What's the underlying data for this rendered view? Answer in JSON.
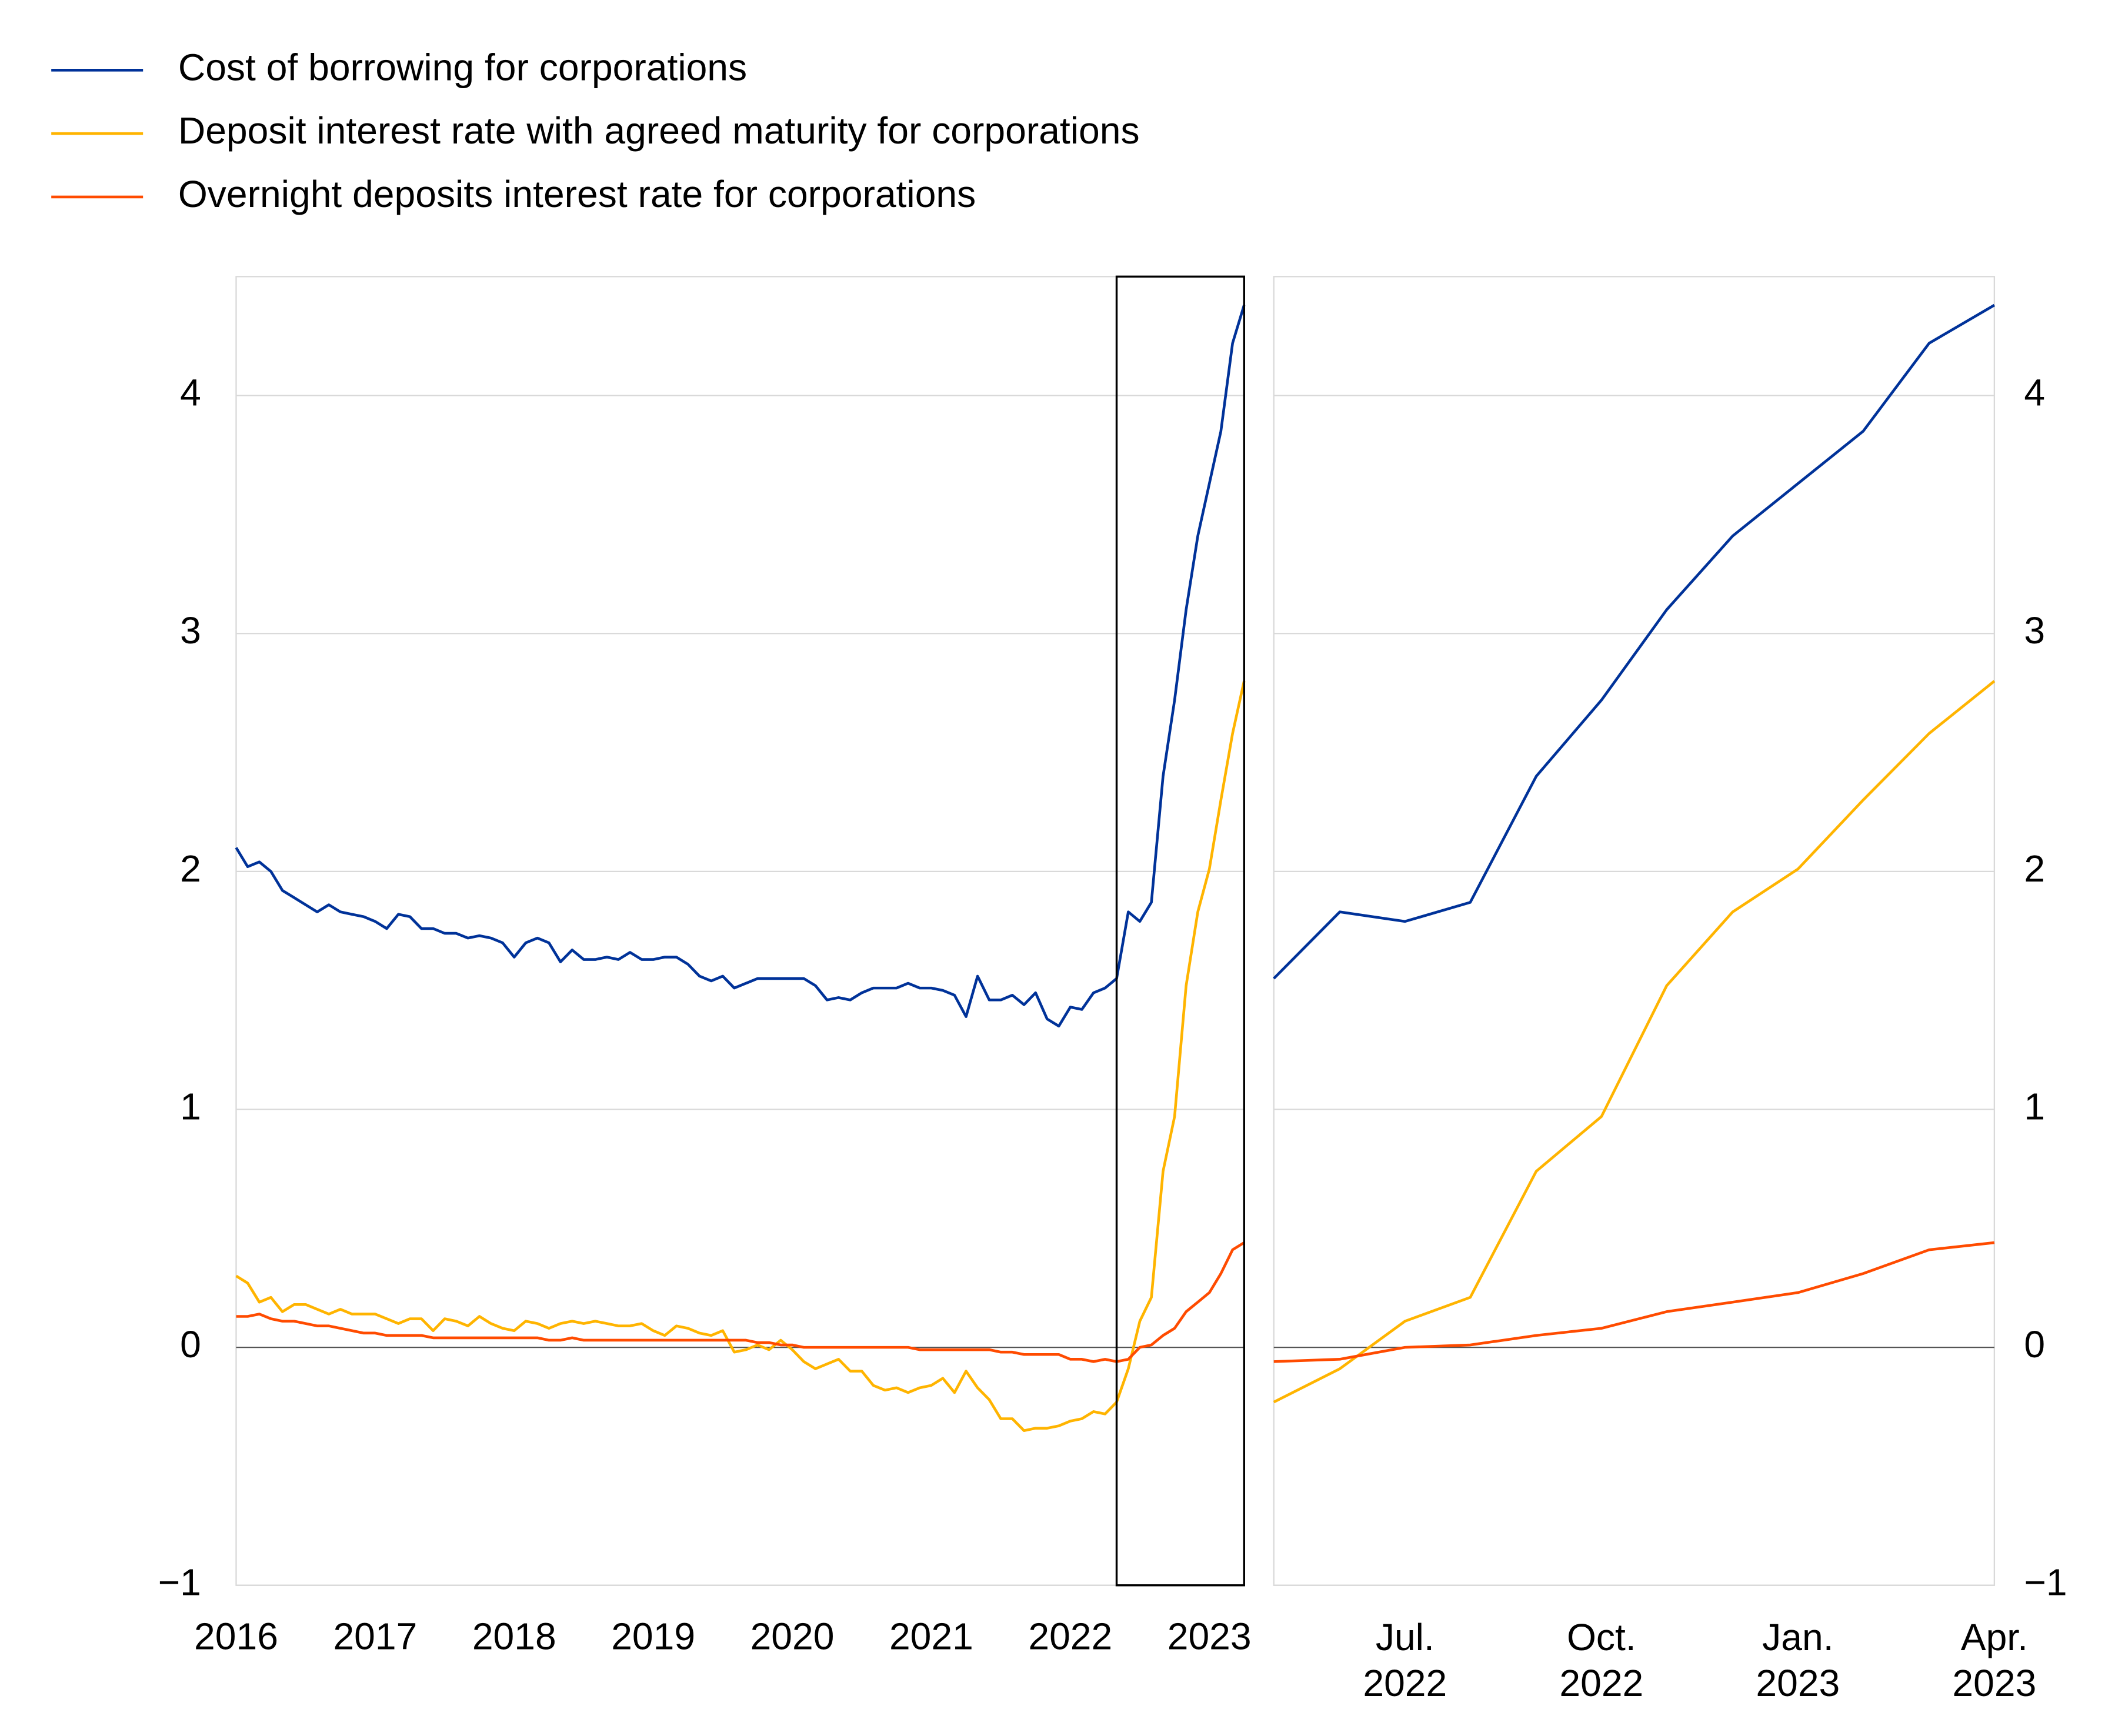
{
  "chart_data": [
    {
      "type": "line",
      "x": [
        2016,
        2016.083,
        2016.167,
        2016.25,
        2016.333,
        2016.417,
        2016.5,
        2016.583,
        2016.667,
        2016.75,
        2016.833,
        2016.917,
        2017,
        2017.083,
        2017.167,
        2017.25,
        2017.333,
        2017.417,
        2017.5,
        2017.583,
        2017.667,
        2017.75,
        2017.833,
        2017.917,
        2018,
        2018.083,
        2018.167,
        2018.25,
        2018.333,
        2018.417,
        2018.5,
        2018.583,
        2018.667,
        2018.75,
        2018.833,
        2018.917,
        2019,
        2019.083,
        2019.167,
        2019.25,
        2019.333,
        2019.417,
        2019.5,
        2019.583,
        2019.667,
        2019.75,
        2019.833,
        2019.917,
        2020,
        2020.083,
        2020.167,
        2020.25,
        2020.333,
        2020.417,
        2020.5,
        2020.583,
        2020.667,
        2020.75,
        2020.833,
        2020.917,
        2021,
        2021.083,
        2021.167,
        2021.25,
        2021.333,
        2021.417,
        2021.5,
        2021.583,
        2021.667,
        2021.75,
        2021.833,
        2021.917,
        2022,
        2022.083,
        2022.167,
        2022.25,
        2022.333,
        2022.417,
        2022.5,
        2022.583,
        2022.667,
        2022.75,
        2022.833,
        2022.917,
        2023,
        2023.083,
        2023.167,
        2023.25
      ],
      "series": [
        {
          "name": "Cost of borrowing for corporations",
          "color": "#003299",
          "values": [
            2.1,
            2.02,
            2.04,
            2.0,
            1.92,
            1.89,
            1.86,
            1.83,
            1.86,
            1.83,
            1.82,
            1.81,
            1.79,
            1.76,
            1.82,
            1.81,
            1.76,
            1.76,
            1.74,
            1.74,
            1.72,
            1.73,
            1.72,
            1.7,
            1.64,
            1.7,
            1.72,
            1.7,
            1.62,
            1.67,
            1.63,
            1.63,
            1.64,
            1.63,
            1.66,
            1.63,
            1.63,
            1.64,
            1.64,
            1.61,
            1.56,
            1.54,
            1.56,
            1.51,
            1.53,
            1.55,
            1.55,
            1.55,
            1.55,
            1.55,
            1.52,
            1.46,
            1.47,
            1.46,
            1.49,
            1.51,
            1.51,
            1.51,
            1.53,
            1.51,
            1.51,
            1.5,
            1.48,
            1.39,
            1.56,
            1.46,
            1.46,
            1.48,
            1.44,
            1.49,
            1.38,
            1.35,
            1.43,
            1.42,
            1.49,
            1.51,
            1.55,
            1.83,
            1.79,
            1.87,
            2.4,
            2.72,
            3.1,
            3.41,
            3.63,
            3.85,
            4.22,
            4.38
          ]
        },
        {
          "name": "Deposit interest rate with agreed maturity for corporations",
          "color": "#ffb400",
          "values": [
            0.3,
            0.27,
            0.19,
            0.21,
            0.15,
            0.18,
            0.18,
            0.16,
            0.14,
            0.16,
            0.14,
            0.14,
            0.14,
            0.12,
            0.1,
            0.12,
            0.12,
            0.07,
            0.12,
            0.11,
            0.09,
            0.13,
            0.1,
            0.08,
            0.07,
            0.11,
            0.1,
            0.08,
            0.1,
            0.11,
            0.1,
            0.11,
            0.1,
            0.09,
            0.09,
            0.1,
            0.07,
            0.05,
            0.09,
            0.08,
            0.06,
            0.05,
            0.07,
            -0.02,
            -0.01,
            0.01,
            -0.01,
            0.03,
            -0.01,
            -0.06,
            -0.09,
            -0.07,
            -0.05,
            -0.1,
            -0.1,
            -0.16,
            -0.18,
            -0.17,
            -0.19,
            -0.17,
            -0.16,
            -0.13,
            -0.19,
            -0.1,
            -0.17,
            -0.22,
            -0.3,
            -0.3,
            -0.35,
            -0.34,
            -0.34,
            -0.33,
            -0.31,
            -0.3,
            -0.27,
            -0.28,
            -0.23,
            -0.09,
            0.11,
            0.21,
            0.74,
            0.97,
            1.52,
            1.83,
            2.01,
            2.3,
            2.58,
            2.8
          ]
        },
        {
          "name": "Overnight deposits interest rate for corporations",
          "color": "#ff4b00",
          "values": [
            0.13,
            0.13,
            0.14,
            0.12,
            0.11,
            0.11,
            0.1,
            0.09,
            0.09,
            0.08,
            0.07,
            0.06,
            0.06,
            0.05,
            0.05,
            0.05,
            0.05,
            0.04,
            0.04,
            0.04,
            0.04,
            0.04,
            0.04,
            0.04,
            0.04,
            0.04,
            0.04,
            0.03,
            0.03,
            0.04,
            0.03,
            0.03,
            0.03,
            0.03,
            0.03,
            0.03,
            0.03,
            0.03,
            0.03,
            0.03,
            0.03,
            0.03,
            0.03,
            0.03,
            0.03,
            0.02,
            0.02,
            0.01,
            0.01,
            0.0,
            0.0,
            0.0,
            0.0,
            0.0,
            0.0,
            0.0,
            0.0,
            0.0,
            0.0,
            -0.01,
            -0.01,
            -0.01,
            -0.01,
            -0.01,
            -0.01,
            -0.01,
            -0.02,
            -0.02,
            -0.03,
            -0.03,
            -0.03,
            -0.03,
            -0.05,
            -0.05,
            -0.06,
            -0.05,
            -0.06,
            -0.05,
            0.0,
            0.01,
            0.05,
            0.08,
            0.15,
            0.19,
            0.23,
            0.31,
            0.41,
            0.44
          ]
        }
      ],
      "xlim": [
        2016,
        2023.25
      ],
      "xticks": [
        2016,
        2017,
        2018,
        2019,
        2020,
        2021,
        2022,
        2023
      ],
      "ylim": [
        -1,
        4.5
      ],
      "yticks": [
        {
          "value": -1,
          "label": "−1"
        },
        0,
        1,
        2,
        3,
        4
      ],
      "grid": true,
      "legend": "top-left"
    },
    {
      "type": "line",
      "x": [
        2022.333,
        2022.417,
        2022.5,
        2022.583,
        2022.667,
        2022.75,
        2022.833,
        2022.917,
        2023,
        2023.083,
        2023.167,
        2023.25
      ],
      "series": [
        {
          "color": "#003299",
          "values": [
            1.55,
            1.83,
            1.79,
            1.87,
            2.4,
            2.72,
            3.1,
            3.41,
            3.63,
            3.85,
            4.22,
            4.38
          ]
        },
        {
          "color": "#ffb400",
          "values": [
            -0.23,
            -0.09,
            0.11,
            0.21,
            0.74,
            0.97,
            1.52,
            1.83,
            2.01,
            2.3,
            2.58,
            2.8
          ]
        },
        {
          "color": "#ff4b00",
          "values": [
            -0.06,
            -0.05,
            0.0,
            0.01,
            0.05,
            0.08,
            0.15,
            0.19,
            0.23,
            0.31,
            0.41,
            0.44
          ]
        }
      ],
      "xlim": [
        2022.333,
        2023.25
      ],
      "xticks": [
        {
          "value": 2022.5,
          "label": "Jul. 2022"
        },
        {
          "value": 2022.75,
          "label": "Oct. 2022"
        },
        {
          "value": 2023,
          "label": "Jan. 2023"
        },
        {
          "value": 2023.25,
          "label": "Apr. 2023"
        }
      ],
      "ylim": [
        -1,
        4.5
      ],
      "yticks": [
        {
          "value": -1,
          "label": "−1"
        },
        0,
        1,
        2,
        3,
        4
      ],
      "grid": true
    }
  ]
}
